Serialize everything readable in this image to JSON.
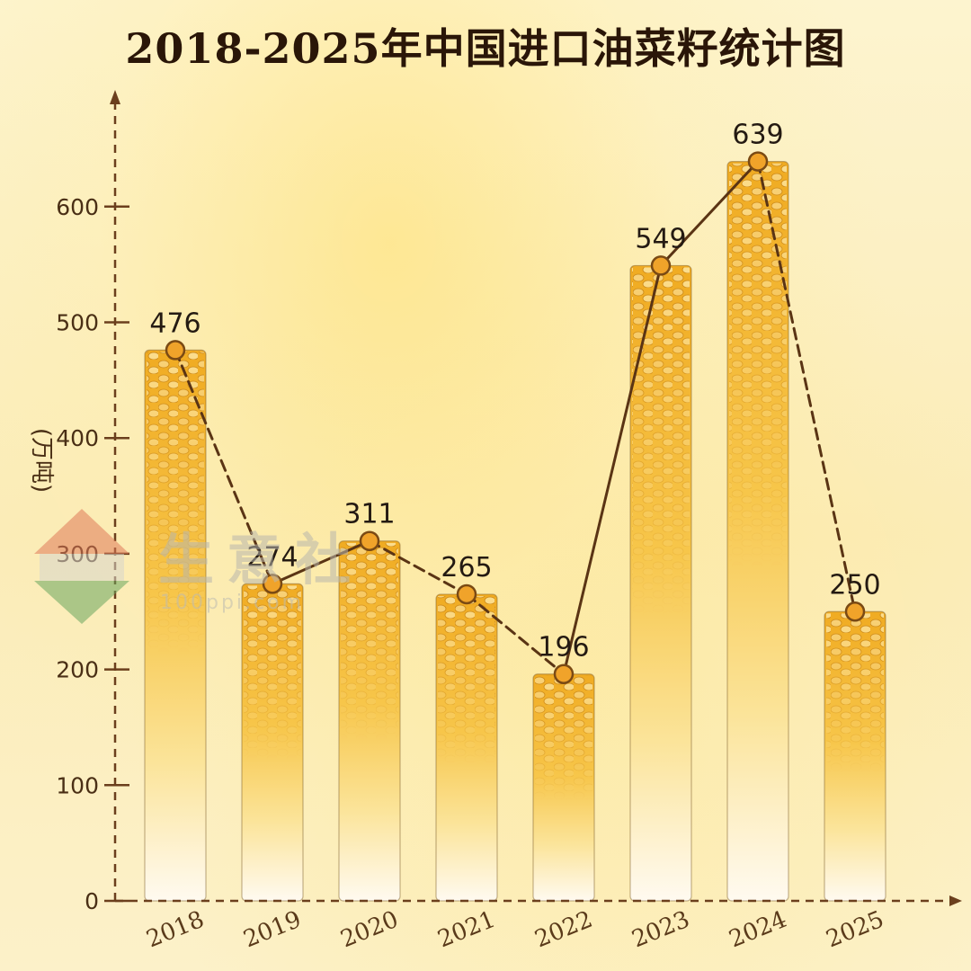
{
  "title": "2018-2025年中国进口油菜籽统计图",
  "watermark": {
    "text": "生意社",
    "url": "100ppi.com"
  },
  "chart_data": {
    "type": "bar",
    "title": "2018-2025年中国进口油菜籽统计图",
    "ylabel": "(万吨)",
    "xlabel": "",
    "categories": [
      "2018",
      "2019",
      "2020",
      "2021",
      "2022",
      "2023",
      "2024",
      "2025"
    ],
    "values": [
      476,
      274,
      311,
      265,
      196,
      549,
      639,
      250
    ],
    "ylim": [
      0,
      690
    ],
    "yticks": [
      0,
      100,
      200,
      300,
      400,
      500,
      600
    ],
    "overlay_line": true,
    "grid": false,
    "colors": {
      "bar": "#f2b526",
      "bar_light": "#fff8e6",
      "line": "#5a3414",
      "marker": "#f0a32a",
      "axis": "#6b3f1d"
    }
  }
}
